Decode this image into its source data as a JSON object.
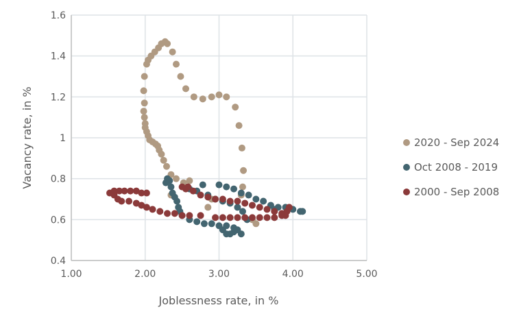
{
  "chart_data": {
    "type": "scatter",
    "xlabel": "Joblessness rate, in %",
    "ylabel": "Vacancy rate, in %",
    "xlim": [
      1.0,
      5.0
    ],
    "ylim": [
      0.4,
      1.6
    ],
    "xticks": [
      "1.00",
      "2.00",
      "3.00",
      "4.00",
      "5.00"
    ],
    "yticks": [
      "0.4",
      "0.6",
      "0.8",
      "1",
      "1.2",
      "1.4",
      "1.6"
    ],
    "grid": true,
    "legend_position": "right",
    "series": [
      {
        "name": "2020 - Sep 2024",
        "color": "#b09a82",
        "points": [
          [
            3.5,
            0.58
          ],
          [
            3.45,
            0.6
          ],
          [
            3.3,
            0.72
          ],
          [
            3.32,
            0.76
          ],
          [
            3.33,
            0.84
          ],
          [
            3.31,
            0.95
          ],
          [
            3.27,
            1.06
          ],
          [
            3.22,
            1.15
          ],
          [
            3.1,
            1.2
          ],
          [
            3.0,
            1.21
          ],
          [
            2.9,
            1.2
          ],
          [
            2.78,
            1.19
          ],
          [
            2.66,
            1.2
          ],
          [
            2.55,
            1.24
          ],
          [
            2.48,
            1.3
          ],
          [
            2.42,
            1.36
          ],
          [
            2.37,
            1.42
          ],
          [
            2.3,
            1.46
          ],
          [
            2.27,
            1.47
          ],
          [
            2.22,
            1.46
          ],
          [
            2.18,
            1.44
          ],
          [
            2.13,
            1.42
          ],
          [
            2.08,
            1.4
          ],
          [
            2.04,
            1.38
          ],
          [
            2.02,
            1.36
          ],
          [
            1.99,
            1.3
          ],
          [
            1.98,
            1.23
          ],
          [
            1.99,
            1.17
          ],
          [
            1.98,
            1.13
          ],
          [
            1.99,
            1.1
          ],
          [
            2.0,
            1.07
          ],
          [
            2.0,
            1.05
          ],
          [
            2.02,
            1.03
          ],
          [
            2.04,
            1.01
          ],
          [
            2.06,
            0.99
          ],
          [
            2.1,
            0.98
          ],
          [
            2.14,
            0.97
          ],
          [
            2.17,
            0.96
          ],
          [
            2.19,
            0.94
          ],
          [
            2.22,
            0.92
          ],
          [
            2.25,
            0.89
          ],
          [
            2.29,
            0.86
          ],
          [
            2.35,
            0.82
          ],
          [
            2.42,
            0.8
          ],
          [
            2.52,
            0.78
          ],
          [
            2.6,
            0.79
          ],
          [
            2.35,
            0.72
          ],
          [
            2.85,
            0.66
          ],
          [
            2.9,
            0.7
          ]
        ]
      },
      {
        "name": "Oct 2008 - 2019",
        "color": "#436570",
        "points": [
          [
            2.28,
            0.78
          ],
          [
            2.3,
            0.8
          ],
          [
            2.33,
            0.79
          ],
          [
            2.35,
            0.76
          ],
          [
            2.37,
            0.73
          ],
          [
            2.4,
            0.71
          ],
          [
            2.43,
            0.69
          ],
          [
            2.45,
            0.66
          ],
          [
            2.47,
            0.64
          ],
          [
            2.5,
            0.62
          ],
          [
            2.6,
            0.6
          ],
          [
            2.7,
            0.59
          ],
          [
            2.8,
            0.58
          ],
          [
            2.9,
            0.58
          ],
          [
            3.0,
            0.57
          ],
          [
            3.05,
            0.55
          ],
          [
            3.1,
            0.53
          ],
          [
            3.15,
            0.53
          ],
          [
            3.2,
            0.54
          ],
          [
            3.25,
            0.55
          ],
          [
            3.3,
            0.53
          ],
          [
            3.2,
            0.56
          ],
          [
            3.1,
            0.57
          ],
          [
            2.6,
            0.75
          ],
          [
            2.7,
            0.74
          ],
          [
            2.78,
            0.77
          ],
          [
            2.85,
            0.72
          ],
          [
            2.95,
            0.7
          ],
          [
            3.05,
            0.69
          ],
          [
            3.15,
            0.68
          ],
          [
            3.25,
            0.66
          ],
          [
            3.32,
            0.64
          ],
          [
            3.38,
            0.6
          ],
          [
            3.0,
            0.77
          ],
          [
            3.1,
            0.76
          ],
          [
            3.2,
            0.75
          ],
          [
            3.3,
            0.73
          ],
          [
            3.4,
            0.72
          ],
          [
            3.5,
            0.7
          ],
          [
            3.6,
            0.69
          ],
          [
            3.7,
            0.67
          ],
          [
            3.75,
            0.65
          ],
          [
            3.8,
            0.66
          ],
          [
            3.9,
            0.66
          ],
          [
            4.0,
            0.65
          ],
          [
            4.1,
            0.64
          ],
          [
            4.13,
            0.64
          ]
        ]
      },
      {
        "name": "2000 - Sep 2008",
        "color": "#8b3a3a",
        "points": [
          [
            1.52,
            0.73
          ],
          [
            1.58,
            0.74
          ],
          [
            1.65,
            0.74
          ],
          [
            1.72,
            0.74
          ],
          [
            1.8,
            0.74
          ],
          [
            1.88,
            0.74
          ],
          [
            1.95,
            0.73
          ],
          [
            2.02,
            0.73
          ],
          [
            1.58,
            0.72
          ],
          [
            1.63,
            0.7
          ],
          [
            1.68,
            0.69
          ],
          [
            1.78,
            0.69
          ],
          [
            1.88,
            0.68
          ],
          [
            1.95,
            0.67
          ],
          [
            2.02,
            0.66
          ],
          [
            2.1,
            0.65
          ],
          [
            2.2,
            0.64
          ],
          [
            2.3,
            0.63
          ],
          [
            2.4,
            0.63
          ],
          [
            2.5,
            0.62
          ],
          [
            2.6,
            0.62
          ],
          [
            2.75,
            0.62
          ],
          [
            2.95,
            0.61
          ],
          [
            3.05,
            0.61
          ],
          [
            3.15,
            0.61
          ],
          [
            3.25,
            0.61
          ],
          [
            3.35,
            0.61
          ],
          [
            3.45,
            0.61
          ],
          [
            3.55,
            0.61
          ],
          [
            3.65,
            0.61
          ],
          [
            3.75,
            0.61
          ],
          [
            3.85,
            0.62
          ],
          [
            3.9,
            0.62
          ],
          [
            3.92,
            0.64
          ],
          [
            3.95,
            0.66
          ],
          [
            3.85,
            0.63
          ],
          [
            3.75,
            0.64
          ],
          [
            3.65,
            0.65
          ],
          [
            3.55,
            0.66
          ],
          [
            3.45,
            0.67
          ],
          [
            3.35,
            0.68
          ],
          [
            3.25,
            0.69
          ],
          [
            3.15,
            0.69
          ],
          [
            3.05,
            0.7
          ],
          [
            2.95,
            0.7
          ],
          [
            2.85,
            0.71
          ],
          [
            2.75,
            0.72
          ],
          [
            2.65,
            0.74
          ],
          [
            2.58,
            0.76
          ],
          [
            2.5,
            0.76
          ],
          [
            2.55,
            0.75
          ]
        ]
      }
    ]
  }
}
